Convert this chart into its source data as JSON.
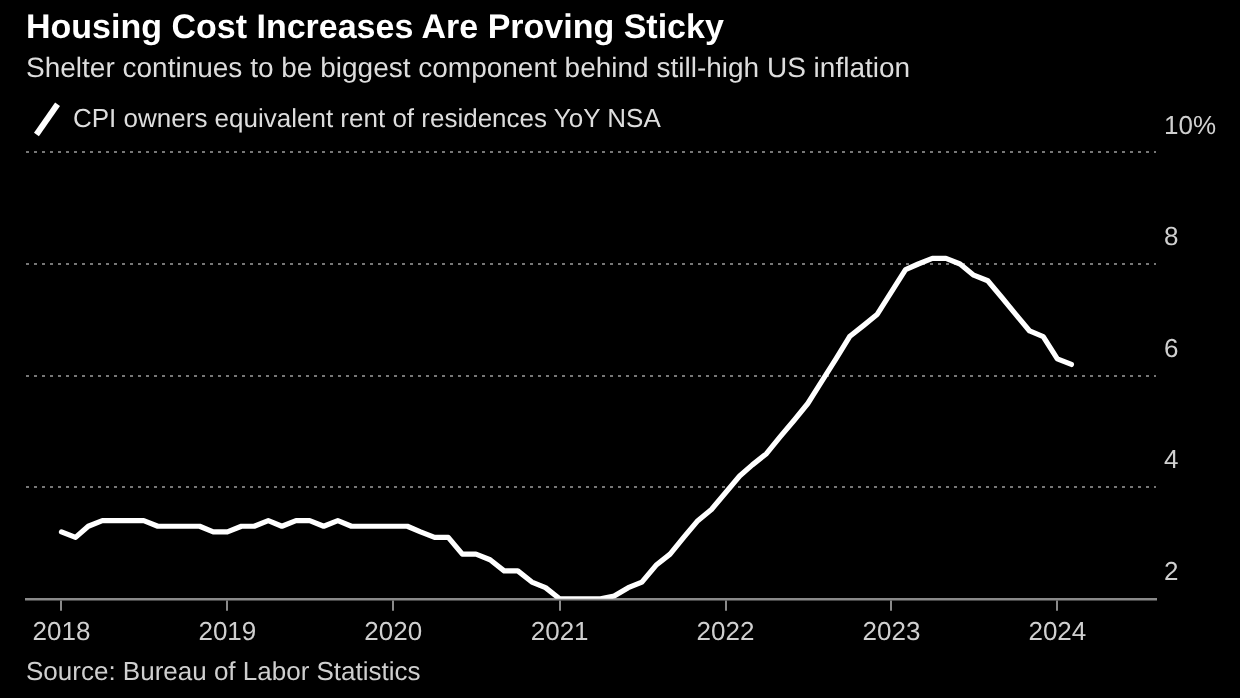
{
  "chart_data": {
    "type": "line",
    "title": "Housing Cost Increases Are Proving Sticky",
    "subtitle": "Shelter continues to be biggest component behind still-high US inflation",
    "annotations": [
      "Source: Bureau of Labor Statistics"
    ],
    "x": [
      "2018-01",
      "2018-02",
      "2018-03",
      "2018-04",
      "2018-05",
      "2018-06",
      "2018-07",
      "2018-08",
      "2018-09",
      "2018-10",
      "2018-11",
      "2018-12",
      "2019-01",
      "2019-02",
      "2019-03",
      "2019-04",
      "2019-05",
      "2019-06",
      "2019-07",
      "2019-08",
      "2019-09",
      "2019-10",
      "2019-11",
      "2019-12",
      "2020-01",
      "2020-02",
      "2020-03",
      "2020-04",
      "2020-05",
      "2020-06",
      "2020-07",
      "2020-08",
      "2020-09",
      "2020-10",
      "2020-11",
      "2020-12",
      "2021-01",
      "2021-02",
      "2021-03",
      "2021-04",
      "2021-05",
      "2021-06",
      "2021-07",
      "2021-08",
      "2021-09",
      "2021-10",
      "2021-11",
      "2021-12",
      "2022-01",
      "2022-02",
      "2022-03",
      "2022-04",
      "2022-05",
      "2022-06",
      "2022-07",
      "2022-08",
      "2022-09",
      "2022-10",
      "2022-11",
      "2022-12",
      "2023-01",
      "2023-02",
      "2023-03",
      "2023-04",
      "2023-05",
      "2023-06",
      "2023-07",
      "2023-08",
      "2023-09",
      "2023-10",
      "2023-11",
      "2023-12",
      "2024-01",
      "2024-02"
    ],
    "series": [
      {
        "name": "CPI owners equivalent rent of residences YoY NSA",
        "color": "#ffffff",
        "values": [
          3.2,
          3.1,
          3.3,
          3.4,
          3.4,
          3.4,
          3.4,
          3.3,
          3.3,
          3.3,
          3.3,
          3.2,
          3.2,
          3.3,
          3.3,
          3.4,
          3.3,
          3.4,
          3.4,
          3.3,
          3.4,
          3.3,
          3.3,
          3.3,
          3.3,
          3.3,
          3.2,
          3.1,
          3.1,
          2.8,
          2.8,
          2.7,
          2.5,
          2.5,
          2.3,
          2.2,
          2.0,
          2.0,
          2.0,
          2.0,
          2.05,
          2.2,
          2.3,
          2.6,
          2.8,
          3.1,
          3.4,
          3.6,
          3.9,
          4.2,
          4.4,
          4.6,
          4.9,
          5.2,
          5.5,
          5.9,
          6.3,
          6.7,
          6.9,
          7.1,
          7.5,
          7.9,
          8.0,
          8.1,
          8.1,
          8.0,
          7.8,
          7.7,
          7.4,
          7.1,
          6.8,
          6.7,
          6.3,
          6.2
        ]
      }
    ],
    "xlim": [
      "2017-10-15",
      "2024-08-05"
    ],
    "xticks": [
      {
        "value": "2018",
        "label": "2018"
      },
      {
        "value": "2019",
        "label": "2019"
      },
      {
        "value": "2020",
        "label": "2020"
      },
      {
        "value": "2021",
        "label": "2021"
      },
      {
        "value": "2022",
        "label": "2022"
      },
      {
        "value": "2023",
        "label": "2023"
      },
      {
        "value": "2024",
        "label": "2024"
      }
    ],
    "ylim": [
      2,
      10
    ],
    "yticks": [
      2,
      4,
      6,
      8,
      {
        "value": 10,
        "label": "10%"
      }
    ],
    "grid": "y",
    "legend": "top left",
    "marker": "none",
    "line_style": "solid"
  }
}
